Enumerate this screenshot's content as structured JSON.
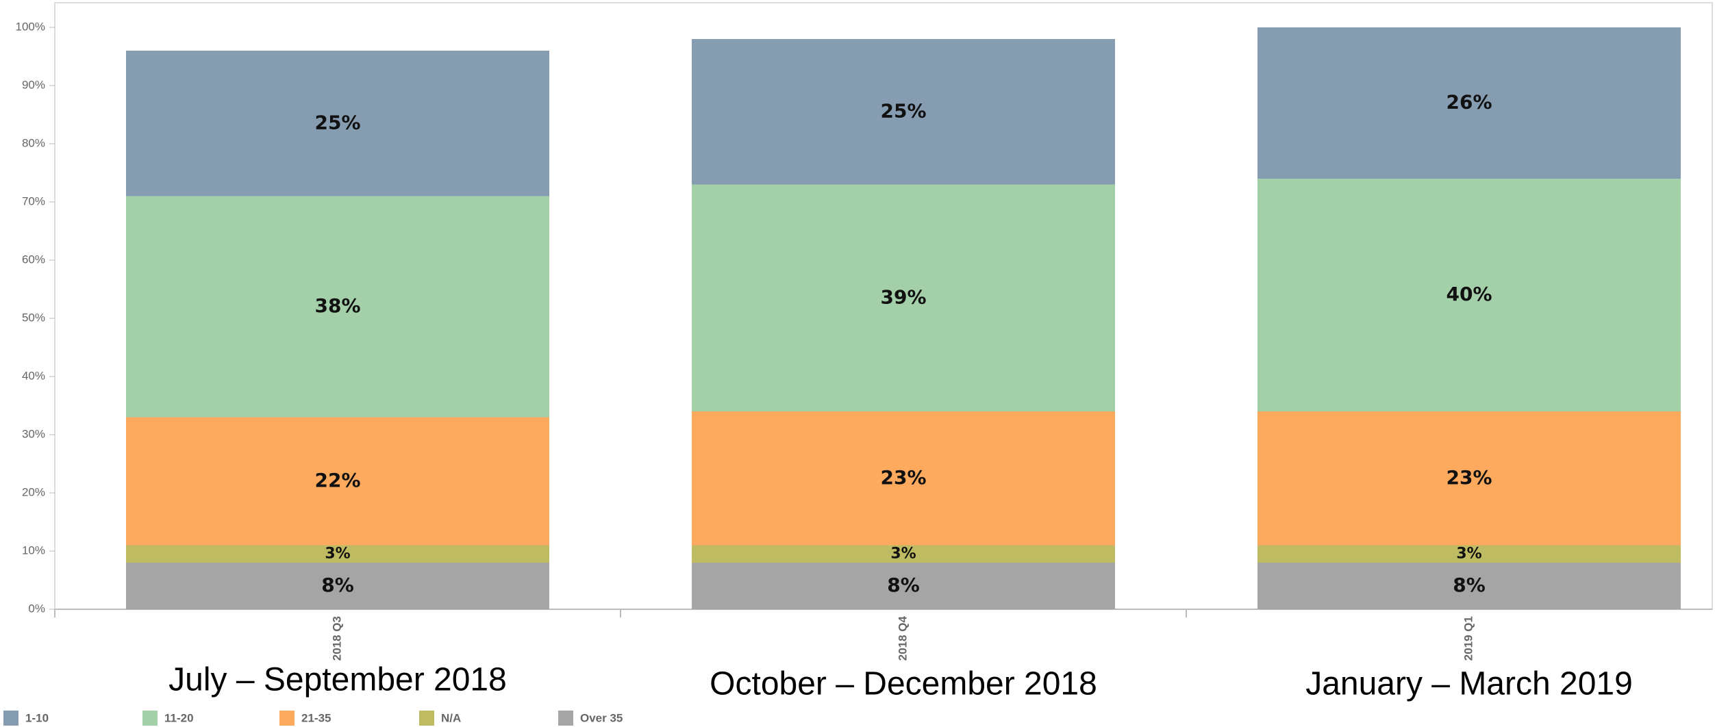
{
  "chart_data": {
    "type": "stacked_bar",
    "categories": [
      "2018 Q3",
      "2018 Q4",
      "2019 Q1"
    ],
    "series": [
      {
        "name": "1-10",
        "color": "#869cb0",
        "values": [
          25,
          25,
          26
        ],
        "value_labels": [
          "25%",
          "25%",
          "26%"
        ]
      },
      {
        "name": "11-20",
        "color": "#a3cfa9",
        "values": [
          38,
          39,
          40
        ],
        "value_labels": [
          "38%",
          "39%",
          "40%"
        ]
      },
      {
        "name": "21-35",
        "color": "#fdaa5e",
        "values": [
          22,
          23,
          23
        ],
        "value_labels": [
          "22%",
          "23%",
          "23%"
        ]
      },
      {
        "name": "N/A",
        "color": "#bfbb62",
        "values": [
          3,
          3,
          3
        ],
        "value_labels": [
          "3%",
          "3%",
          "3%"
        ]
      },
      {
        "name": "Over 35",
        "color": "#a5a5a5",
        "values": [
          8,
          8,
          8
        ],
        "value_labels": [
          "8%",
          "8%",
          "8%"
        ]
      }
    ],
    "annotations": [
      "July – September 2018",
      "October – December 2018",
      "January – March 2019"
    ],
    "ylim": [
      0,
      100
    ],
    "yticks": [
      {
        "value": 0,
        "label": "0%"
      },
      {
        "value": 10,
        "label": "10%"
      },
      {
        "value": 20,
        "label": "20%"
      },
      {
        "value": 30,
        "label": "30%"
      },
      {
        "value": 40,
        "label": "40%"
      },
      {
        "value": 50,
        "label": "50%"
      },
      {
        "value": 60,
        "label": "60%"
      },
      {
        "value": 70,
        "label": "70%"
      },
      {
        "value": 80,
        "label": "80%"
      },
      {
        "value": 90,
        "label": "90%"
      },
      {
        "value": 100,
        "label": "100%"
      }
    ],
    "legend": "bottom-left"
  }
}
